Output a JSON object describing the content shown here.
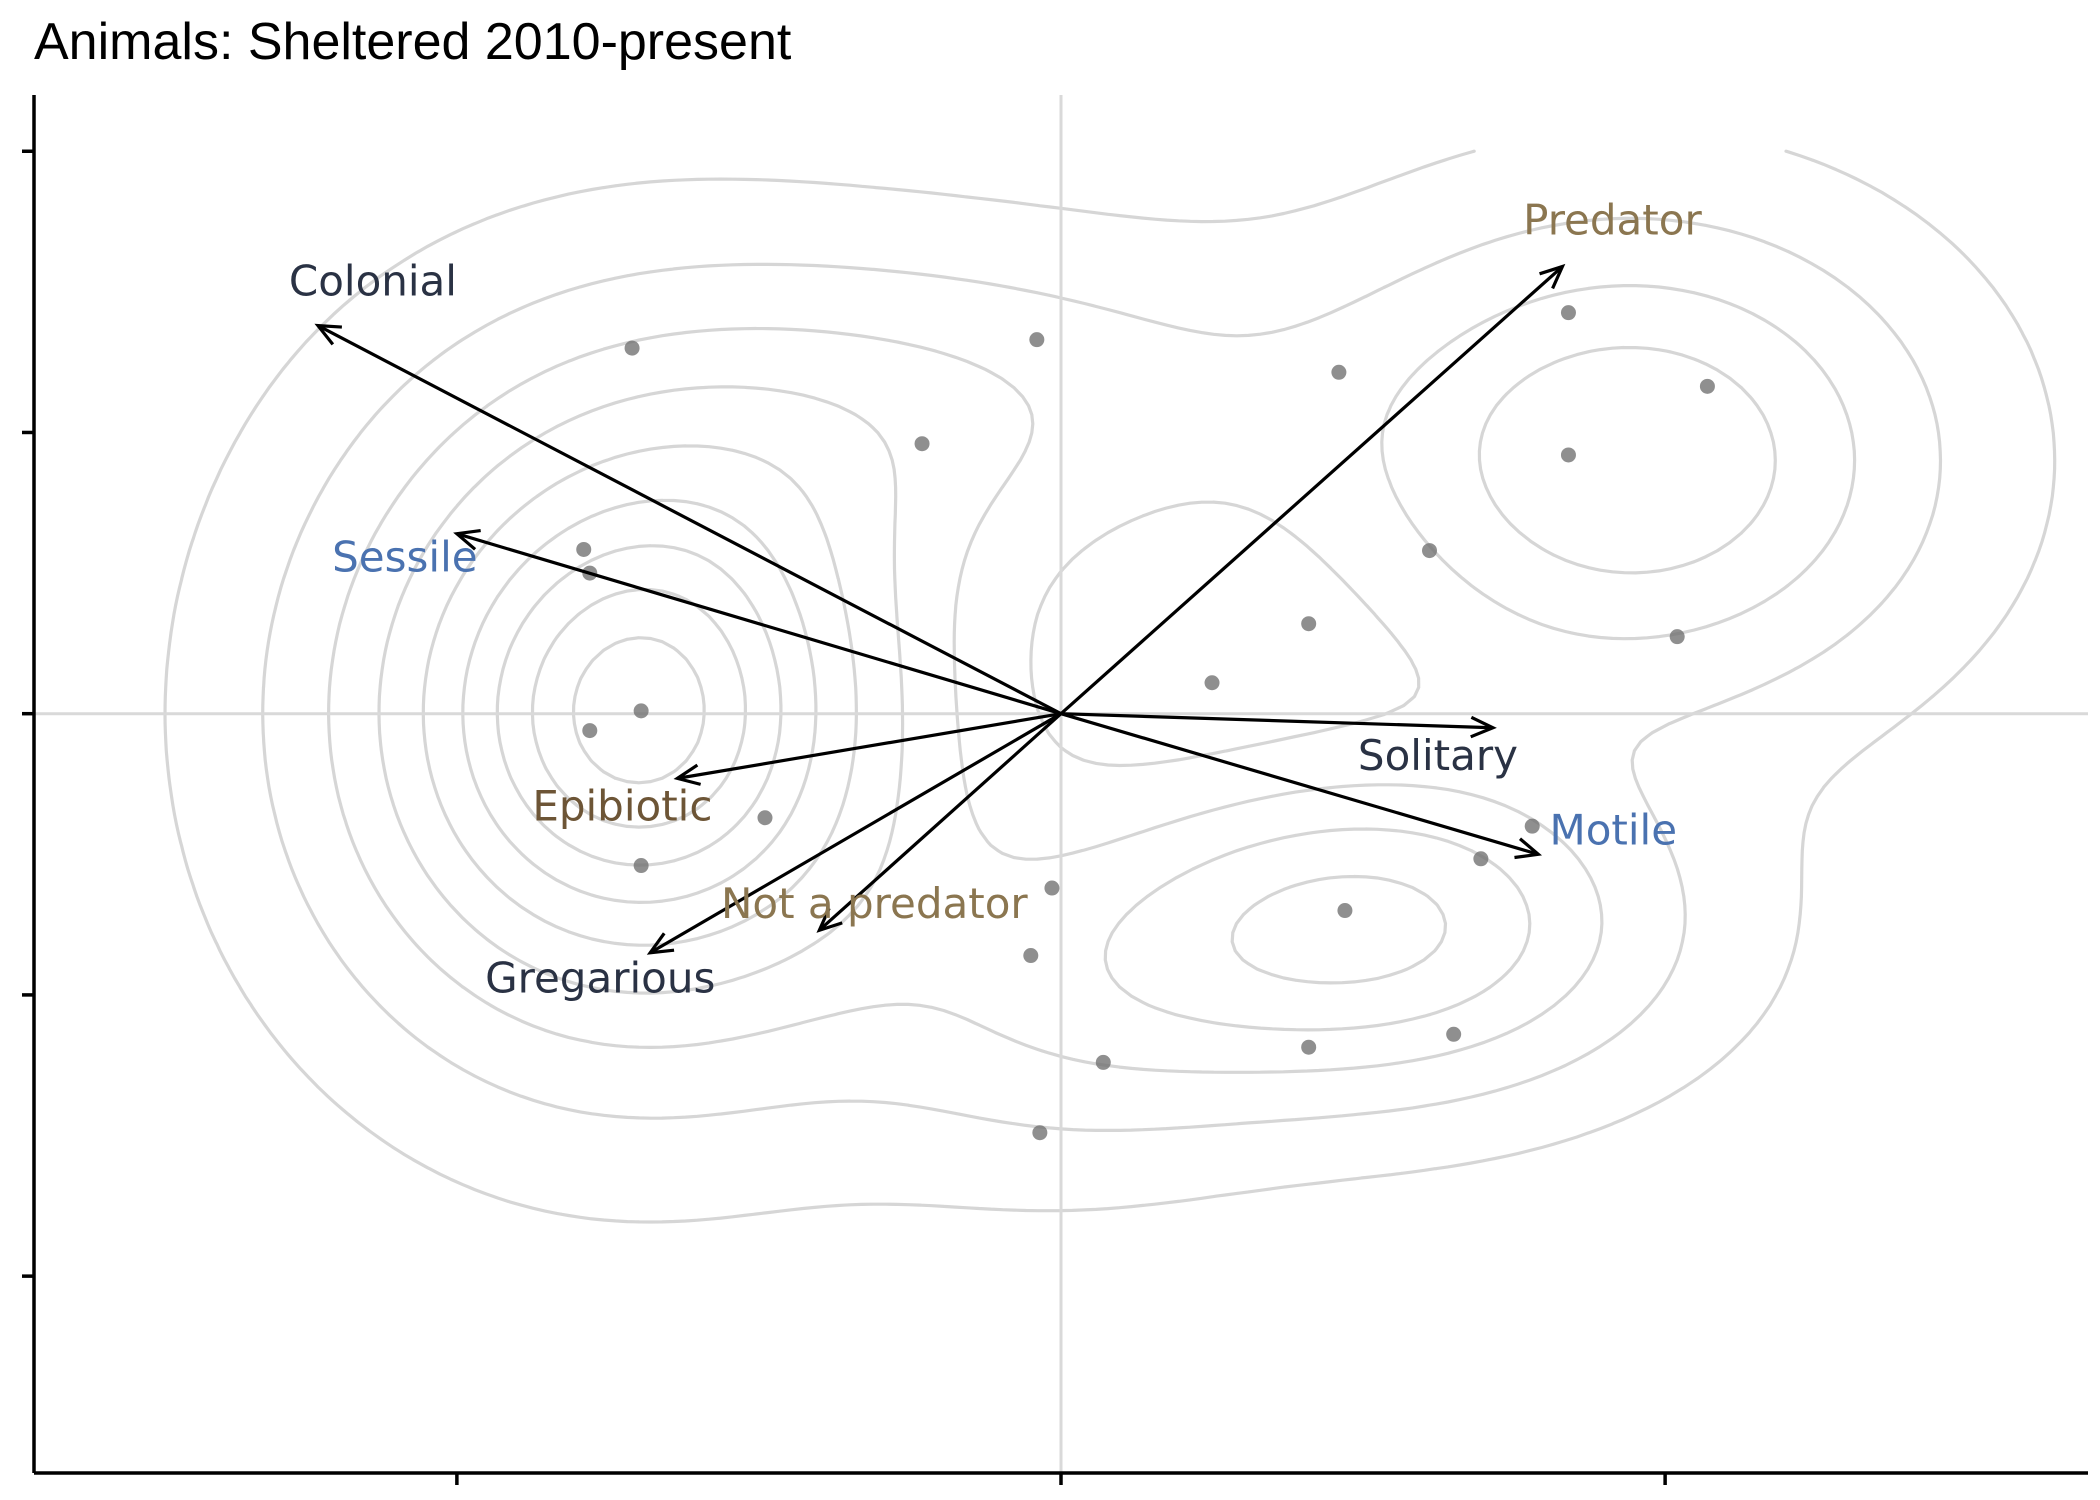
{
  "chart_data": {
    "type": "scatter",
    "title": "Animals: Sheltered 2010-present",
    "xlabel": "",
    "ylabel": "",
    "xlim": [
      -1.7,
      1.7
    ],
    "ylim": [
      -1.35,
      1.1
    ],
    "x_ticks": [
      -1,
      0,
      1
    ],
    "y_ticks": [
      1,
      0.5,
      0,
      -0.5,
      -1
    ],
    "tick_labels_shown": false,
    "grid": false,
    "reference_lines": {
      "x": 0,
      "y": 0
    },
    "density_contours": true,
    "colors": {
      "points": "#6f6f6f",
      "contour": "#d6d6d6",
      "arrows": "#000000",
      "label_dark": "#2a3244",
      "label_blue": "#4a72b0",
      "label_tan": "#8b7650",
      "label_brown": "#6d5536"
    },
    "points": [
      {
        "x": -0.71,
        "y": 0.65
      },
      {
        "x": -0.04,
        "y": 0.665
      },
      {
        "x": 0.46,
        "y": 0.607
      },
      {
        "x": 0.84,
        "y": 0.713
      },
      {
        "x": 1.07,
        "y": 0.582
      },
      {
        "x": 0.84,
        "y": 0.46
      },
      {
        "x": -0.23,
        "y": 0.48
      },
      {
        "x": -0.79,
        "y": 0.292
      },
      {
        "x": -0.78,
        "y": 0.25
      },
      {
        "x": 0.61,
        "y": 0.29
      },
      {
        "x": 0.41,
        "y": 0.16
      },
      {
        "x": 1.02,
        "y": 0.137
      },
      {
        "x": 0.25,
        "y": 0.055
      },
      {
        "x": -0.695,
        "y": 0.005
      },
      {
        "x": -0.78,
        "y": -0.03
      },
      {
        "x": -0.49,
        "y": -0.185
      },
      {
        "x": -0.695,
        "y": -0.27
      },
      {
        "x": 0.78,
        "y": -0.2
      },
      {
        "x": 0.695,
        "y": -0.258
      },
      {
        "x": -0.015,
        "y": -0.31
      },
      {
        "x": 0.47,
        "y": -0.35
      },
      {
        "x": -0.05,
        "y": -0.43
      },
      {
        "x": 0.07,
        "y": -0.62
      },
      {
        "x": 0.41,
        "y": -0.593
      },
      {
        "x": 0.65,
        "y": -0.57
      },
      {
        "x": -0.035,
        "y": -0.745
      }
    ],
    "arrows": [
      {
        "name": "Colonial",
        "x": -1.23,
        "y": 0.69,
        "color": "label_dark"
      },
      {
        "name": "Predator",
        "x": 0.83,
        "y": 0.795,
        "color": "label_tan"
      },
      {
        "name": "Sessile",
        "x": -1.0,
        "y": 0.32,
        "color": "label_blue"
      },
      {
        "name": "Solitary",
        "x": 0.715,
        "y": -0.025,
        "color": "label_dark"
      },
      {
        "name": "Motile",
        "x": 0.79,
        "y": -0.25,
        "color": "label_blue"
      },
      {
        "name": "Epibiotic",
        "x": -0.635,
        "y": -0.115,
        "color": "label_brown"
      },
      {
        "name": "Not a predator",
        "x": -0.4,
        "y": -0.385,
        "color": "label_tan"
      },
      {
        "name": "Gregarious",
        "x": -0.68,
        "y": -0.425,
        "color": "label_dark"
      }
    ]
  }
}
